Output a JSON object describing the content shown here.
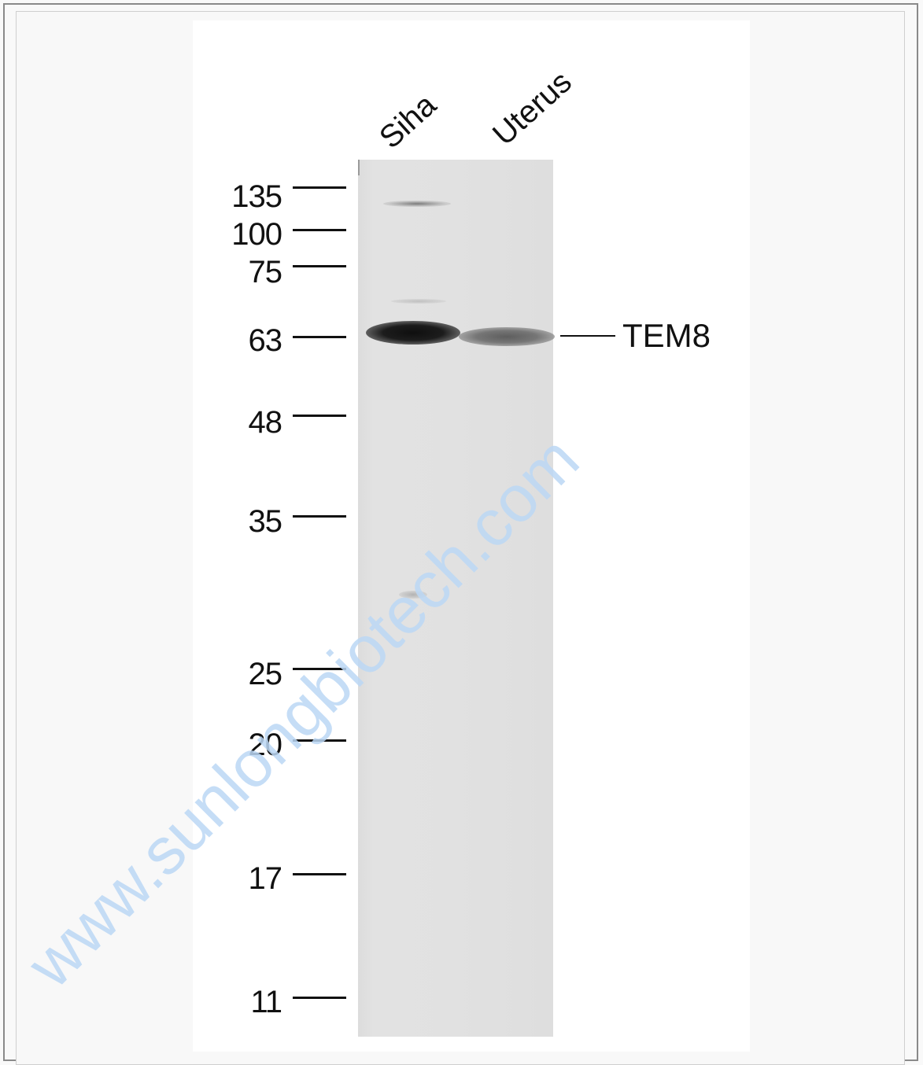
{
  "figure": {
    "lanes": [
      "Siha",
      "Uterus"
    ],
    "target_label": "TEM8",
    "watermark": "www.sunlongbiotech.com",
    "markers": [
      {
        "label": "135",
        "kda": 135
      },
      {
        "label": "100",
        "kda": 100
      },
      {
        "label": "75",
        "kda": 75
      },
      {
        "label": "63",
        "kda": 63
      },
      {
        "label": "48",
        "kda": 48
      },
      {
        "label": "35",
        "kda": 35
      },
      {
        "label": "25",
        "kda": 25
      },
      {
        "label": "20",
        "kda": 20
      },
      {
        "label": "17",
        "kda": 17
      },
      {
        "label": "11",
        "kda": 11
      }
    ]
  },
  "colors": {
    "membrane": "#e1e1e1",
    "band_strong": "#1a1a1a",
    "band_medium": "#6f6f6f",
    "watermark": "#bcd8f5"
  }
}
